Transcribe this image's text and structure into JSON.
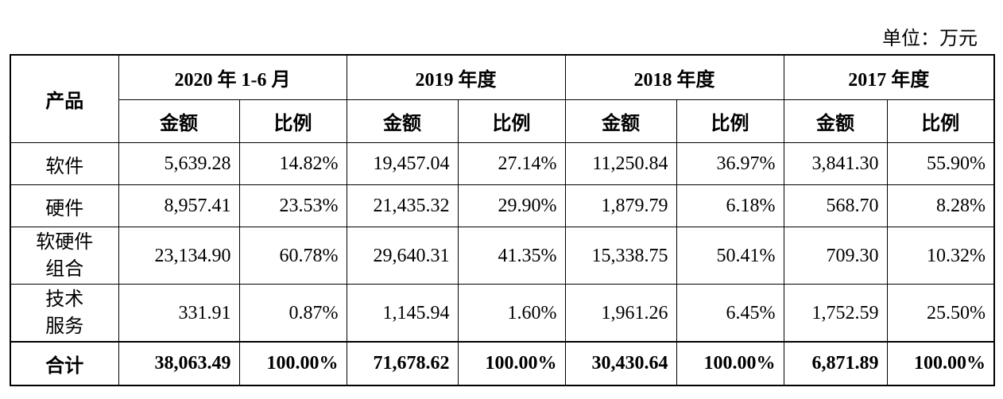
{
  "unit": "单位：万元",
  "table": {
    "product_header": "产品",
    "periods": [
      "2020 年 1-6 月",
      "2019 年度",
      "2018 年度",
      "2017 年度"
    ],
    "subheaders": [
      "金额",
      "比例"
    ],
    "rows": [
      {
        "label": [
          "软件"
        ],
        "cells": [
          "5,639.28",
          "14.82%",
          "19,457.04",
          "27.14%",
          "11,250.84",
          "36.97%",
          "3,841.30",
          "55.90%"
        ]
      },
      {
        "label": [
          "硬件"
        ],
        "cells": [
          "8,957.41",
          "23.53%",
          "21,435.32",
          "29.90%",
          "1,879.79",
          "6.18%",
          "568.70",
          "8.28%"
        ]
      },
      {
        "label": [
          "软硬件",
          "组合"
        ],
        "cells": [
          "23,134.90",
          "60.78%",
          "29,640.31",
          "41.35%",
          "15,338.75",
          "50.41%",
          "709.30",
          "10.32%"
        ]
      },
      {
        "label": [
          "技术",
          "服务"
        ],
        "cells": [
          "331.91",
          "0.87%",
          "1,145.94",
          "1.60%",
          "1,961.26",
          "6.45%",
          "1,752.59",
          "25.50%"
        ]
      }
    ],
    "total": {
      "label": "合计",
      "cells": [
        "38,063.49",
        "100.00%",
        "71,678.62",
        "100.00%",
        "30,430.64",
        "100.00%",
        "6,871.89",
        "100.00%"
      ]
    }
  }
}
